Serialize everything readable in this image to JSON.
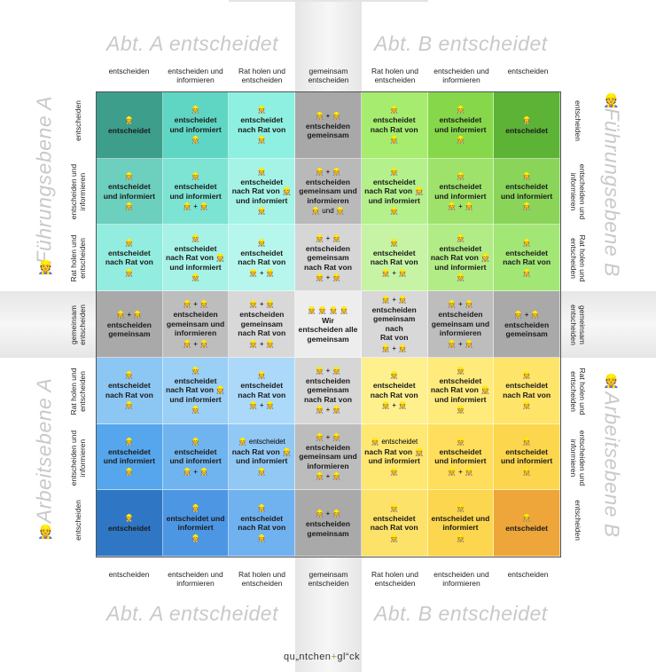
{
  "headings": {
    "top_left": "Abt. A entscheidet",
    "top_right": "Abt. B entscheidet",
    "bottom_left": "Abt. A entscheidet",
    "bottom_right": "Abt. B entscheidet",
    "left_upper": "Führungsebene A",
    "left_lower": "Arbeitsebene A",
    "right_upper": "Führungsebene B",
    "right_lower": "Arbeitsebene B"
  },
  "icons": {
    "left_upper": "👷",
    "left_lower": "👷",
    "right_upper": "👷",
    "right_lower": "👷"
  },
  "column_labels": [
    "entscheiden",
    "entscheiden und informieren",
    "Rat holen und entscheiden",
    "gemeinsam entscheiden",
    "Rat holen und entscheiden",
    "entscheiden und informieren",
    "entscheiden"
  ],
  "row_labels_left": [
    "entscheiden",
    "entscheiden und informieren",
    "Rat holen und entscheiden",
    "gemeinsam entscheiden",
    "Rat holen und entscheiden",
    "entscheiden und informieren",
    "entscheiden"
  ],
  "row_labels_right": [
    "entscheiden",
    "entscheiden und informieren",
    "Rat holen und entscheiden",
    "gemeinsam entscheiden",
    "Rat holen und entscheiden",
    "entscheiden und informieren",
    "entscheiden"
  ],
  "cells": [
    [
      {
        "top": "👷",
        "text": "entscheidet",
        "bottom": "",
        "color": "#3d9e8c"
      },
      {
        "top": "👷",
        "text": "entscheidet\nund informiert",
        "bottom": "👷",
        "color": "#5fd6c4"
      },
      {
        "top": "👷",
        "text": "entscheidet\nnach Rat von",
        "bottom": "👷",
        "color": "#8ef0e0"
      },
      {
        "top": "👷 + 👷",
        "text": "entscheiden\ngemeinsam",
        "bottom": "",
        "color": "#a8a8a8"
      },
      {
        "top": "👷",
        "text": "entscheidet\nnach Rat von",
        "bottom": "👷",
        "color": "#a6ec6e"
      },
      {
        "top": "👷",
        "text": "entscheidet\nund informiert",
        "bottom": "👷",
        "color": "#86d84a"
      },
      {
        "top": "👷",
        "text": "entscheidet",
        "bottom": "",
        "color": "#5cb336"
      }
    ],
    [
      {
        "top": "👷",
        "text": "entscheidet\nund informiert",
        "bottom": "👷",
        "color": "#6dcfbe"
      },
      {
        "top": "👷",
        "text": "entscheidet\nund informiert",
        "bottom": "👷 + 👷",
        "color": "#7de3d3"
      },
      {
        "top": "👷",
        "text": "entscheidet\nnach Rat von 👷\nund informiert",
        "bottom": "👷",
        "color": "#a5f3e6"
      },
      {
        "top": "👷 + 👷",
        "text": "entscheiden\ngemeinsam und\ninformieren",
        "bottom": "👷 und 👷",
        "color": "#b9b9b9"
      },
      {
        "top": "👷",
        "text": "entscheidet\nnach Rat von 👷\nund informiert",
        "bottom": "👷",
        "color": "#b4f08c"
      },
      {
        "top": "👷",
        "text": "entscheidet\nund informiert",
        "bottom": "👷 + 👷",
        "color": "#9ee26c"
      },
      {
        "top": "👷",
        "text": "entscheidet\nund informiert",
        "bottom": "👷",
        "color": "#8ad45a"
      }
    ],
    [
      {
        "top": "👷",
        "text": "entscheidet\nnach Rat von",
        "bottom": "👷",
        "color": "#92ecdf"
      },
      {
        "top": "👷",
        "text": "entscheidet\nnach Rat von 👷\nund informiert",
        "bottom": "👷",
        "color": "#a6f2e6"
      },
      {
        "top": "👷",
        "text": "entscheidet\nnach Rat von",
        "bottom": "👷 + 👷",
        "color": "#b6f6ec"
      },
      {
        "top": "👷 + 👷",
        "text": "entscheiden\ngemeinsam\nnach Rat von",
        "bottom": "👷 + 👷",
        "color": "#d6d6d6"
      },
      {
        "top": "👷",
        "text": "entscheidet\nnach Rat von",
        "bottom": "👷 + 👷",
        "color": "#c6f4a4"
      },
      {
        "top": "👷",
        "text": "entscheidet\nnach Rat von 👷\nund informiert",
        "bottom": "👷",
        "color": "#b2ec86"
      },
      {
        "top": "👷",
        "text": "entscheidet\nnach Rat von",
        "bottom": "👷",
        "color": "#a2e676"
      }
    ],
    [
      {
        "top": "👷 + 👷",
        "text": "entscheiden\ngemeinsam",
        "bottom": "",
        "color": "#a9a9a9"
      },
      {
        "top": "👷 + 👷",
        "text": "entscheiden\ngemeinsam und\ninformieren",
        "bottom": "👷 + 👷",
        "color": "#bdbdbd"
      },
      {
        "top": "👷 + 👷",
        "text": "entscheiden\ngemeinsam\nnach Rat von",
        "bottom": "👷 + 👷",
        "color": "#d8d8d8"
      },
      {
        "top": "👷 👷 👷 👷",
        "text": "Wir\nentscheiden alle\ngemeinsam",
        "bottom": "",
        "color": "#ededed"
      },
      {
        "top": "👷 + 👷",
        "text": "entscheiden\ngemeinsam nach\nRat von",
        "bottom": "👷 + 👷",
        "color": "#d8d8d8"
      },
      {
        "top": "👷 + 👷",
        "text": "entscheiden\ngemeinsam und\ninformieren",
        "bottom": "👷 + 👷",
        "color": "#bdbdbd"
      },
      {
        "top": "👷 + 👷",
        "text": "entscheiden\ngemeinsam",
        "bottom": "",
        "color": "#a9a9a9"
      }
    ],
    [
      {
        "top": "👷",
        "text": "entscheidet\nnach Rat von",
        "bottom": "👷",
        "color": "#8cc6f3"
      },
      {
        "top": "👷",
        "text": "entscheidet\nnach Rat von 👷\nund informiert",
        "bottom": "👷",
        "color": "#9acff6"
      },
      {
        "top": "👷",
        "text": "entscheidet\nnach Rat von",
        "bottom": "👷 + 👷",
        "color": "#acd9f9"
      },
      {
        "top": "👷 + 👷",
        "text": "entscheiden\ngemeinsam\nnach Rat von",
        "bottom": "👷 + 👷",
        "color": "#d6d6d6"
      },
      {
        "top": "👷",
        "text": "entscheidet\nnach Rat von",
        "bottom": "👷 + 👷",
        "color": "#fff08e"
      },
      {
        "top": "👷",
        "text": "entscheidet\nnach Rat von 👷\nund informiert",
        "bottom": "👷",
        "color": "#ffeb7c"
      },
      {
        "top": "👷",
        "text": "entscheidet\nnach Rat von",
        "bottom": "👷",
        "color": "#ffe46a"
      }
    ],
    [
      {
        "top": "👷",
        "text": "entscheidet\nund informiert",
        "bottom": "👷",
        "color": "#55a6ec"
      },
      {
        "top": "👷",
        "text": "entscheidet\nund informiert",
        "bottom": "👷 + 👷",
        "color": "#6fb4ef"
      },
      {
        "top": "👷 entscheidet",
        "text": "nach Rat von 👷\nund informiert",
        "bottom": "👷",
        "color": "#92c8f4"
      },
      {
        "top": "👷 + 👷",
        "text": "entscheiden\ngemeinsam und\ninformieren",
        "bottom": "👷 + 👷",
        "color": "#bcbcbc"
      },
      {
        "top": "👷 entscheidet",
        "text": "nach Rat von 👷\nund informiert",
        "bottom": "👷",
        "color": "#ffe872"
      },
      {
        "top": "👷",
        "text": "entscheidet\nund informiert",
        "bottom": "👷 + 👷",
        "color": "#fede5c"
      },
      {
        "top": "👷",
        "text": "entscheidet\nund informiert",
        "bottom": "👷",
        "color": "#fcd64c"
      }
    ],
    [
      {
        "top": "👷",
        "text": "entscheidet",
        "bottom": "",
        "color": "#2f77c4"
      },
      {
        "top": "👷",
        "text": "entscheidet und\ninformiert",
        "bottom": "👷",
        "color": "#4d96e4"
      },
      {
        "top": "👷",
        "text": "entscheidet\nnach Rat von",
        "bottom": "👷",
        "color": "#70b2f0"
      },
      {
        "top": "👷 + 👷",
        "text": "entscheiden\ngemeinsam",
        "bottom": "",
        "color": "#a9a9a9"
      },
      {
        "top": "👷",
        "text": "entscheidet\nnach Rat von",
        "bottom": "👷",
        "color": "#fde26a"
      },
      {
        "top": "👷",
        "text": "entscheidet und\ninformiert",
        "bottom": "👷",
        "color": "#fcd64e"
      },
      {
        "top": "👷",
        "text": "entscheidet",
        "bottom": "",
        "color": "#eea63a"
      }
    ]
  ],
  "logo": {
    "part1": "qu„ntchen",
    "plus": "+",
    "part2": "gl“ck"
  }
}
